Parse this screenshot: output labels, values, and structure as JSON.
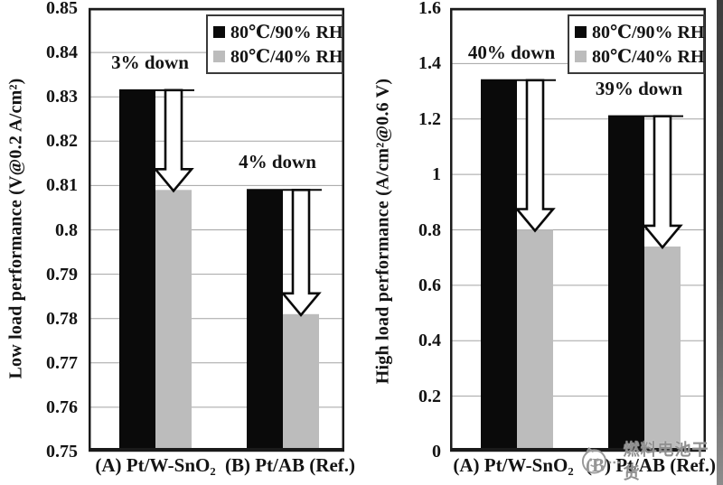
{
  "watermark": {
    "text": "燃料电池干货",
    "logo_icon": "cat-face-logo-icon"
  },
  "colors": {
    "series_dark": "#0a0a0a",
    "series_light": "#bcbcbc",
    "grid": "#a3a3a3",
    "border": "#1a1a1a",
    "arrow_fill": "#ffffff",
    "arrow_stroke": "#0a0a0a",
    "watermark": "#8f8f8f",
    "edge_strip": "#4a4a4a"
  },
  "legend": {
    "items": [
      {
        "label": "80℃/90% RH",
        "color": "#0a0a0a"
      },
      {
        "label": "80℃/40% RH",
        "color": "#bcbcbc"
      }
    ]
  },
  "chart_data": [
    {
      "type": "bar",
      "title": "",
      "xlabel": "",
      "ylabel": "Low load performance (V@0.2 A/cm²)",
      "ylim": [
        0.75,
        0.85
      ],
      "grid": true,
      "legend": [
        "80℃/90% RH",
        "80℃/40% RH"
      ],
      "legend_position": "top-right",
      "ytick_values": [
        0.85,
        0.84,
        0.83,
        0.82,
        0.81,
        0.8,
        0.79,
        0.78,
        0.77,
        0.76,
        0.75
      ],
      "ytick_labels": [
        "0.85",
        "0.84",
        "0.83",
        "0.82",
        "0.81",
        "0.8",
        "0.79",
        "0.78",
        "0.77",
        "0.76",
        "0.75"
      ],
      "categories": [
        "(A) Pt/W-SnO₂",
        "(B) Pt/AB (Ref.)"
      ],
      "series": [
        {
          "name": "80℃/90% RH",
          "color": "#0a0a0a",
          "values": [
            0.8315,
            0.809
          ]
        },
        {
          "name": "80℃/40% RH",
          "color": "#bcbcbc",
          "values": [
            0.809,
            0.781
          ]
        }
      ],
      "annotations": [
        {
          "text": "3% down",
          "category": 0
        },
        {
          "text": "4% down",
          "category": 1
        }
      ],
      "arrows": [
        {
          "category": 0,
          "from_series": 0,
          "to_series": 1
        },
        {
          "category": 1,
          "from_series": 0,
          "to_series": 1
        }
      ]
    },
    {
      "type": "bar",
      "title": "",
      "xlabel": "",
      "ylabel": "High load performance (A/cm²@0.6 V)",
      "ylim": [
        0,
        1.6
      ],
      "grid": true,
      "legend": [
        "80℃/90% RH",
        "80℃/40% RH"
      ],
      "legend_position": "top-right",
      "ytick_values": [
        1.6,
        1.4,
        1.2,
        1.0,
        0.8,
        0.6,
        0.4,
        0.2,
        0
      ],
      "ytick_labels": [
        "1.6",
        "1.4",
        "1.2",
        "1",
        "0.8",
        "0.6",
        "0.4",
        "0.2",
        "0"
      ],
      "categories": [
        "(A) Pt/W-SnO₂",
        "(B) Pt/AB (Ref.)"
      ],
      "series": [
        {
          "name": "80℃/90% RH",
          "color": "#0a0a0a",
          "values": [
            1.34,
            1.21
          ]
        },
        {
          "name": "80℃/40% RH",
          "color": "#bcbcbc",
          "values": [
            0.8,
            0.74
          ]
        }
      ],
      "annotations": [
        {
          "text": "40% down",
          "category": 0
        },
        {
          "text": "39% down",
          "category": 1
        }
      ],
      "arrows": [
        {
          "category": 0,
          "from_series": 0,
          "to_series": 1
        },
        {
          "category": 1,
          "from_series": 0,
          "to_series": 1
        }
      ]
    }
  ]
}
